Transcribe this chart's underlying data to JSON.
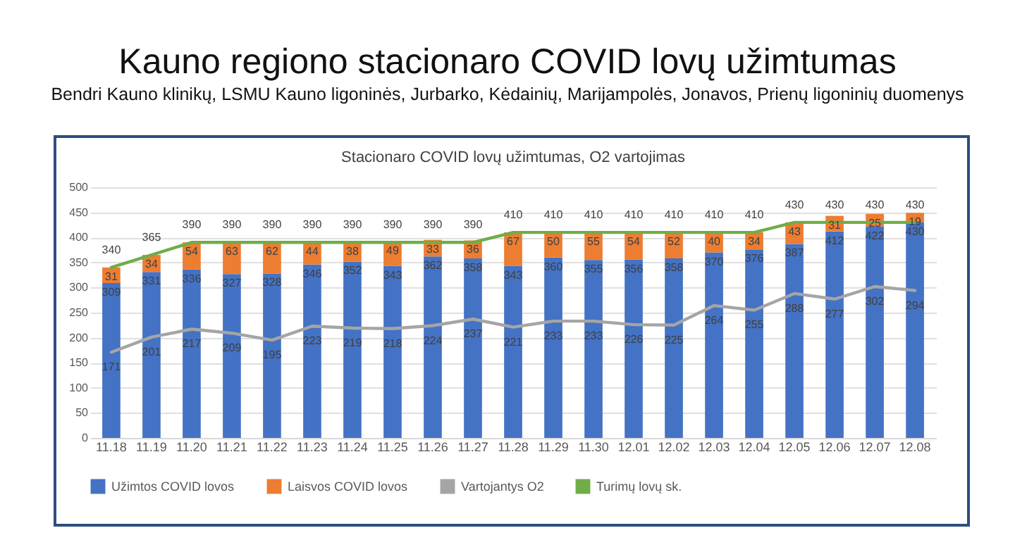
{
  "chart_data": {
    "type": "bar",
    "stacked": true,
    "title": "Kauno regiono stacionaro COVID lovų užimtumas",
    "subtitle": "Bendri Kauno klinikų, LSMU Kauno ligoninės, Jurbarko, Kėdainių, Marijampolės, Jonavos, Prienų ligoninių duomenys",
    "annotations": [
      "Stacionaro COVID lovų užimtumas, O2 vartojimas"
    ],
    "categories": [
      "11.18",
      "11.19",
      "11.20",
      "11.21",
      "11.22",
      "11.23",
      "11.24",
      "11.25",
      "11.26",
      "11.27",
      "11.28",
      "11.29",
      "11.30",
      "12.01",
      "12.02",
      "12.03",
      "12.04",
      "12.05",
      "12.06",
      "12.07",
      "12.08"
    ],
    "series": [
      {
        "name": "Užimtos COVID lovos",
        "color": "#4472c4",
        "values": [
          309,
          331,
          336,
          327,
          328,
          346,
          352,
          343,
          362,
          358,
          343,
          360,
          355,
          356,
          358,
          370,
          376,
          387,
          412,
          422,
          430
        ]
      },
      {
        "name": "Laisvos COVID lovos",
        "color": "#ed7d31",
        "values": [
          31,
          34,
          54,
          63,
          62,
          44,
          38,
          49,
          33,
          36,
          67,
          50,
          55,
          54,
          52,
          40,
          34,
          43,
          31,
          25,
          19
        ]
      },
      {
        "name": "Vartojantys O2",
        "type": "line",
        "color": "#a5a5a5",
        "values": [
          171,
          201,
          217,
          209,
          195,
          223,
          219,
          218,
          224,
          237,
          221,
          233,
          233,
          226,
          225,
          264,
          255,
          288,
          277,
          302,
          294
        ]
      },
      {
        "name": "Turimų lovų sk.",
        "type": "line",
        "color": "#70ad47",
        "values": [
          340,
          365,
          390,
          390,
          390,
          390,
          390,
          390,
          390,
          390,
          410,
          410,
          410,
          410,
          410,
          410,
          410,
          430,
          430,
          430,
          430
        ]
      }
    ],
    "ylim": [
      0,
      500
    ],
    "yticks": [
      0,
      50,
      100,
      150,
      200,
      250,
      300,
      350,
      400,
      450,
      500
    ],
    "grid": "y",
    "legend": "bottom",
    "data_labels": true
  }
}
